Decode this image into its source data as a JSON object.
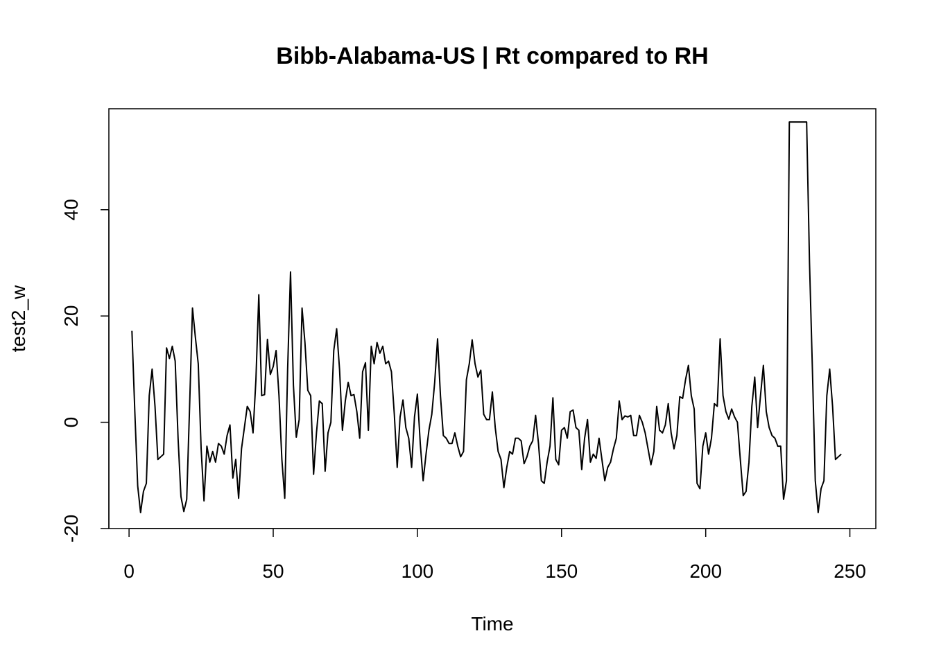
{
  "chart_data": {
    "type": "line",
    "title": "Bibb-Alabama-US | Rt compared to RH",
    "xlabel": "Time",
    "ylabel": "test2_w",
    "xlim": [
      -7,
      259
    ],
    "ylim": [
      -20,
      59
    ],
    "x_ticks": [
      0,
      50,
      100,
      150,
      200,
      250
    ],
    "x_tick_labels": [
      "0",
      "50",
      "100",
      "150",
      "200",
      "250"
    ],
    "y_ticks": [
      -20,
      0,
      20,
      40
    ],
    "y_tick_labels": [
      "-20",
      "0",
      "20",
      "40"
    ],
    "grid": false,
    "legend": "none",
    "line_color": "#000000",
    "series": [
      {
        "x_start": 1,
        "x_step": 1,
        "values": [
          17.2,
          2.0,
          -12.0,
          -17.0,
          -13.0,
          -11.5,
          5.0,
          10.0,
          3.0,
          -7.0,
          -6.5,
          -6.0,
          14.0,
          12.0,
          14.3,
          11.5,
          -3.0,
          -14.0,
          -16.8,
          -14.5,
          3.0,
          21.5,
          16.0,
          11.0,
          -5.0,
          -14.8,
          -4.5,
          -7.5,
          -5.5,
          -7.5,
          -4.0,
          -4.5,
          -6.0,
          -2.5,
          -0.5,
          -10.5,
          -7.0,
          -14.3,
          -5.0,
          -1.0,
          3.0,
          2.0,
          -2.0,
          8.0,
          24.0,
          5.0,
          5.2,
          15.6,
          9.0,
          10.5,
          13.5,
          5.0,
          -7.0,
          -14.3,
          10.0,
          28.3,
          7.0,
          -2.8,
          0.5,
          21.5,
          15.0,
          6.0,
          5.0,
          -9.8,
          -2.0,
          4.0,
          3.5,
          -9.2,
          -2.0,
          0.0,
          13.5,
          17.6,
          10.0,
          -1.5,
          4.0,
          7.5,
          5.0,
          5.2,
          2.0,
          -3.0,
          9.5,
          11.2,
          -1.5,
          14.3,
          11.0,
          15.0,
          13.0,
          14.3,
          11.0,
          11.5,
          9.5,
          1.5,
          -8.5,
          1.0,
          4.2,
          -1.0,
          -3.0,
          -8.5,
          1.0,
          5.3,
          -4.0,
          -11.0,
          -6.0,
          -1.5,
          1.5,
          7.5,
          15.7,
          5.0,
          -2.5,
          -3.0,
          -4.0,
          -4.0,
          -2.0,
          -4.5,
          -6.5,
          -5.5,
          8.0,
          11.0,
          15.5,
          11.0,
          8.5,
          9.8,
          1.5,
          0.5,
          0.5,
          5.7,
          -1.0,
          -5.5,
          -7.0,
          -12.3,
          -8.5,
          -5.5,
          -6.0,
          -3.0,
          -3.0,
          -3.5,
          -7.8,
          -6.5,
          -4.5,
          -3.5,
          1.3,
          -4.0,
          -11.0,
          -11.5,
          -7.5,
          -4.5,
          4.6,
          -7.0,
          -8.0,
          -1.5,
          -1.0,
          -3.0,
          2.0,
          2.3,
          -1.0,
          -1.5,
          -8.9,
          -3.0,
          0.5,
          -7.5,
          -6.0,
          -6.8,
          -3.0,
          -7.0,
          -11.0,
          -8.5,
          -7.5,
          -5.0,
          -3.0,
          4.0,
          0.5,
          1.2,
          1.0,
          1.3,
          -2.5,
          -2.5,
          1.3,
          0.0,
          -2.0,
          -5.0,
          -8.0,
          -5.5,
          3.0,
          -1.5,
          -2.0,
          -0.5,
          3.5,
          -2.0,
          -5.0,
          -2.5,
          4.8,
          4.5,
          8.0,
          10.7,
          5.0,
          2.5,
          -11.5,
          -12.5,
          -4.5,
          -2.0,
          -6.0,
          -3.0,
          3.5,
          3.0,
          15.7,
          5.0,
          2.0,
          0.6,
          2.5,
          1.0,
          0.0,
          -7.0,
          -13.8,
          -13.0,
          -7.5,
          3.0,
          8.5,
          -1.0,
          5.0,
          10.7,
          2.0,
          -1.0,
          -2.5,
          -3.0,
          -4.5,
          -4.5,
          -14.5,
          -11.0,
          56.5,
          56.5,
          56.5,
          56.5,
          56.5,
          56.5,
          56.5,
          30.0,
          10.0,
          -11.0,
          -17.0,
          -12.5,
          -11.0,
          5.0,
          10.0,
          3.0,
          -7.0,
          -6.5,
          -6.0
        ]
      }
    ]
  }
}
